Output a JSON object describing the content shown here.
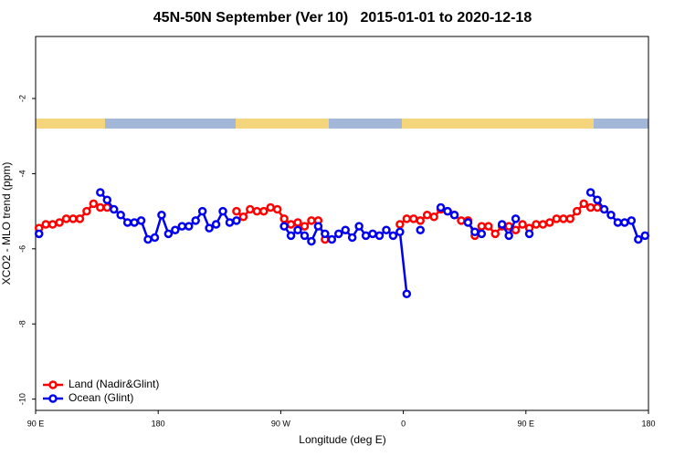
{
  "chart_data": {
    "type": "line",
    "title": "45N-50N September (Ver 10)   2015-01-01 to 2020-12-18",
    "x_label": "Longitude (deg E)",
    "y_label": "XCO2 - MLO trend (ppm)",
    "xlim": [
      90,
      540
    ],
    "xticks": [
      {
        "value": 90,
        "label": "90 E"
      },
      {
        "value": 180,
        "label": "180"
      },
      {
        "value": 270,
        "label": "90 W"
      },
      {
        "value": 360,
        "label": "0"
      },
      {
        "value": 450,
        "label": "90 E"
      },
      {
        "value": 540,
        "label": "180"
      }
    ],
    "ylim": [
      -10.3,
      -0.35
    ],
    "yticks": [
      -2,
      -4,
      -6,
      -8,
      -10
    ],
    "legend": "bottom-left",
    "x": [
      92.5,
      97.5,
      102.5,
      107.5,
      112.5,
      117.5,
      122.5,
      127.5,
      132.5,
      137.5,
      142.5,
      147.5,
      152.5,
      157.5,
      162.5,
      167.5,
      172.5,
      177.5,
      182.5,
      187.5,
      192.5,
      197.5,
      202.5,
      207.5,
      212.5,
      217.5,
      222.5,
      227.5,
      232.5,
      237.5,
      242.5,
      247.5,
      252.5,
      257.5,
      262.5,
      267.5,
      272.5,
      277.5,
      282.5,
      287.5,
      292.5,
      297.5,
      302.5,
      307.5,
      312.5,
      317.5,
      322.5,
      327.5,
      332.5,
      337.5,
      342.5,
      347.5,
      352.5,
      357.5,
      362.5,
      367.5,
      372.5,
      377.5,
      382.5,
      387.5,
      392.5,
      397.5,
      402.5,
      407.5,
      412.5,
      417.5,
      422.5,
      427.5,
      432.5,
      437.5,
      442.5,
      447.5,
      452.5,
      457.5,
      462.5,
      467.5,
      472.5,
      477.5,
      482.5,
      487.5,
      492.5,
      497.5,
      502.5,
      507.5,
      512.5,
      517.5,
      522.5,
      527.5,
      532.5,
      537.5
    ],
    "series": [
      {
        "name": "Land (Nadir&Glint)",
        "color": "#ff0000",
        "values": [
          -5.45,
          -5.35,
          -5.35,
          -5.3,
          -5.2,
          -5.2,
          -5.2,
          -5.0,
          -4.8,
          -4.9,
          -4.9,
          null,
          null,
          null,
          null,
          null,
          null,
          null,
          null,
          null,
          null,
          null,
          null,
          null,
          null,
          null,
          null,
          null,
          null,
          -5.0,
          -5.15,
          -4.95,
          -5.0,
          -5.0,
          -4.9,
          -4.95,
          -5.2,
          -5.35,
          -5.3,
          -5.4,
          -5.25,
          -5.25,
          -5.75,
          null,
          null,
          null,
          null,
          null,
          null,
          null,
          null,
          null,
          null,
          -5.35,
          -5.2,
          -5.2,
          -5.25,
          -5.1,
          -5.15,
          -4.95,
          -5.0,
          -5.1,
          -5.25,
          -5.25,
          -5.65,
          -5.4,
          -5.4,
          -5.6,
          -5.4,
          -5.4,
          -5.5,
          -5.35,
          -5.45,
          -5.35,
          -5.35,
          -5.3,
          -5.2,
          -5.2,
          -5.2,
          -5.0,
          -4.8,
          -4.9,
          -4.9,
          null,
          null,
          null,
          null,
          null,
          null,
          null
        ]
      },
      {
        "name": "Ocean (Glint)",
        "color": "#0000ee",
        "values": [
          -5.6,
          null,
          null,
          null,
          null,
          null,
          null,
          null,
          null,
          -4.5,
          -4.7,
          -4.95,
          -5.1,
          -5.3,
          -5.3,
          -5.25,
          -5.75,
          -5.7,
          -5.1,
          -5.6,
          -5.5,
          -5.4,
          -5.4,
          -5.25,
          -5.0,
          -5.45,
          -5.35,
          -5.0,
          -5.3,
          -5.25,
          null,
          null,
          null,
          null,
          null,
          null,
          -5.4,
          -5.65,
          -5.5,
          -5.65,
          -5.8,
          -5.4,
          -5.6,
          -5.75,
          -5.6,
          -5.5,
          -5.7,
          -5.4,
          -5.65,
          -5.6,
          -5.65,
          -5.5,
          -5.65,
          -5.55,
          -7.2,
          null,
          -5.5,
          null,
          null,
          -4.9,
          -5.0,
          -5.1,
          null,
          -5.3,
          -5.55,
          -5.6,
          null,
          null,
          -5.35,
          -5.65,
          -5.2,
          null,
          -5.6,
          null,
          null,
          null,
          null,
          null,
          null,
          null,
          null,
          -4.5,
          -4.7,
          -4.95,
          -5.1,
          -5.3,
          -5.3,
          -5.25,
          -5.75,
          -5.65
        ]
      }
    ]
  }
}
